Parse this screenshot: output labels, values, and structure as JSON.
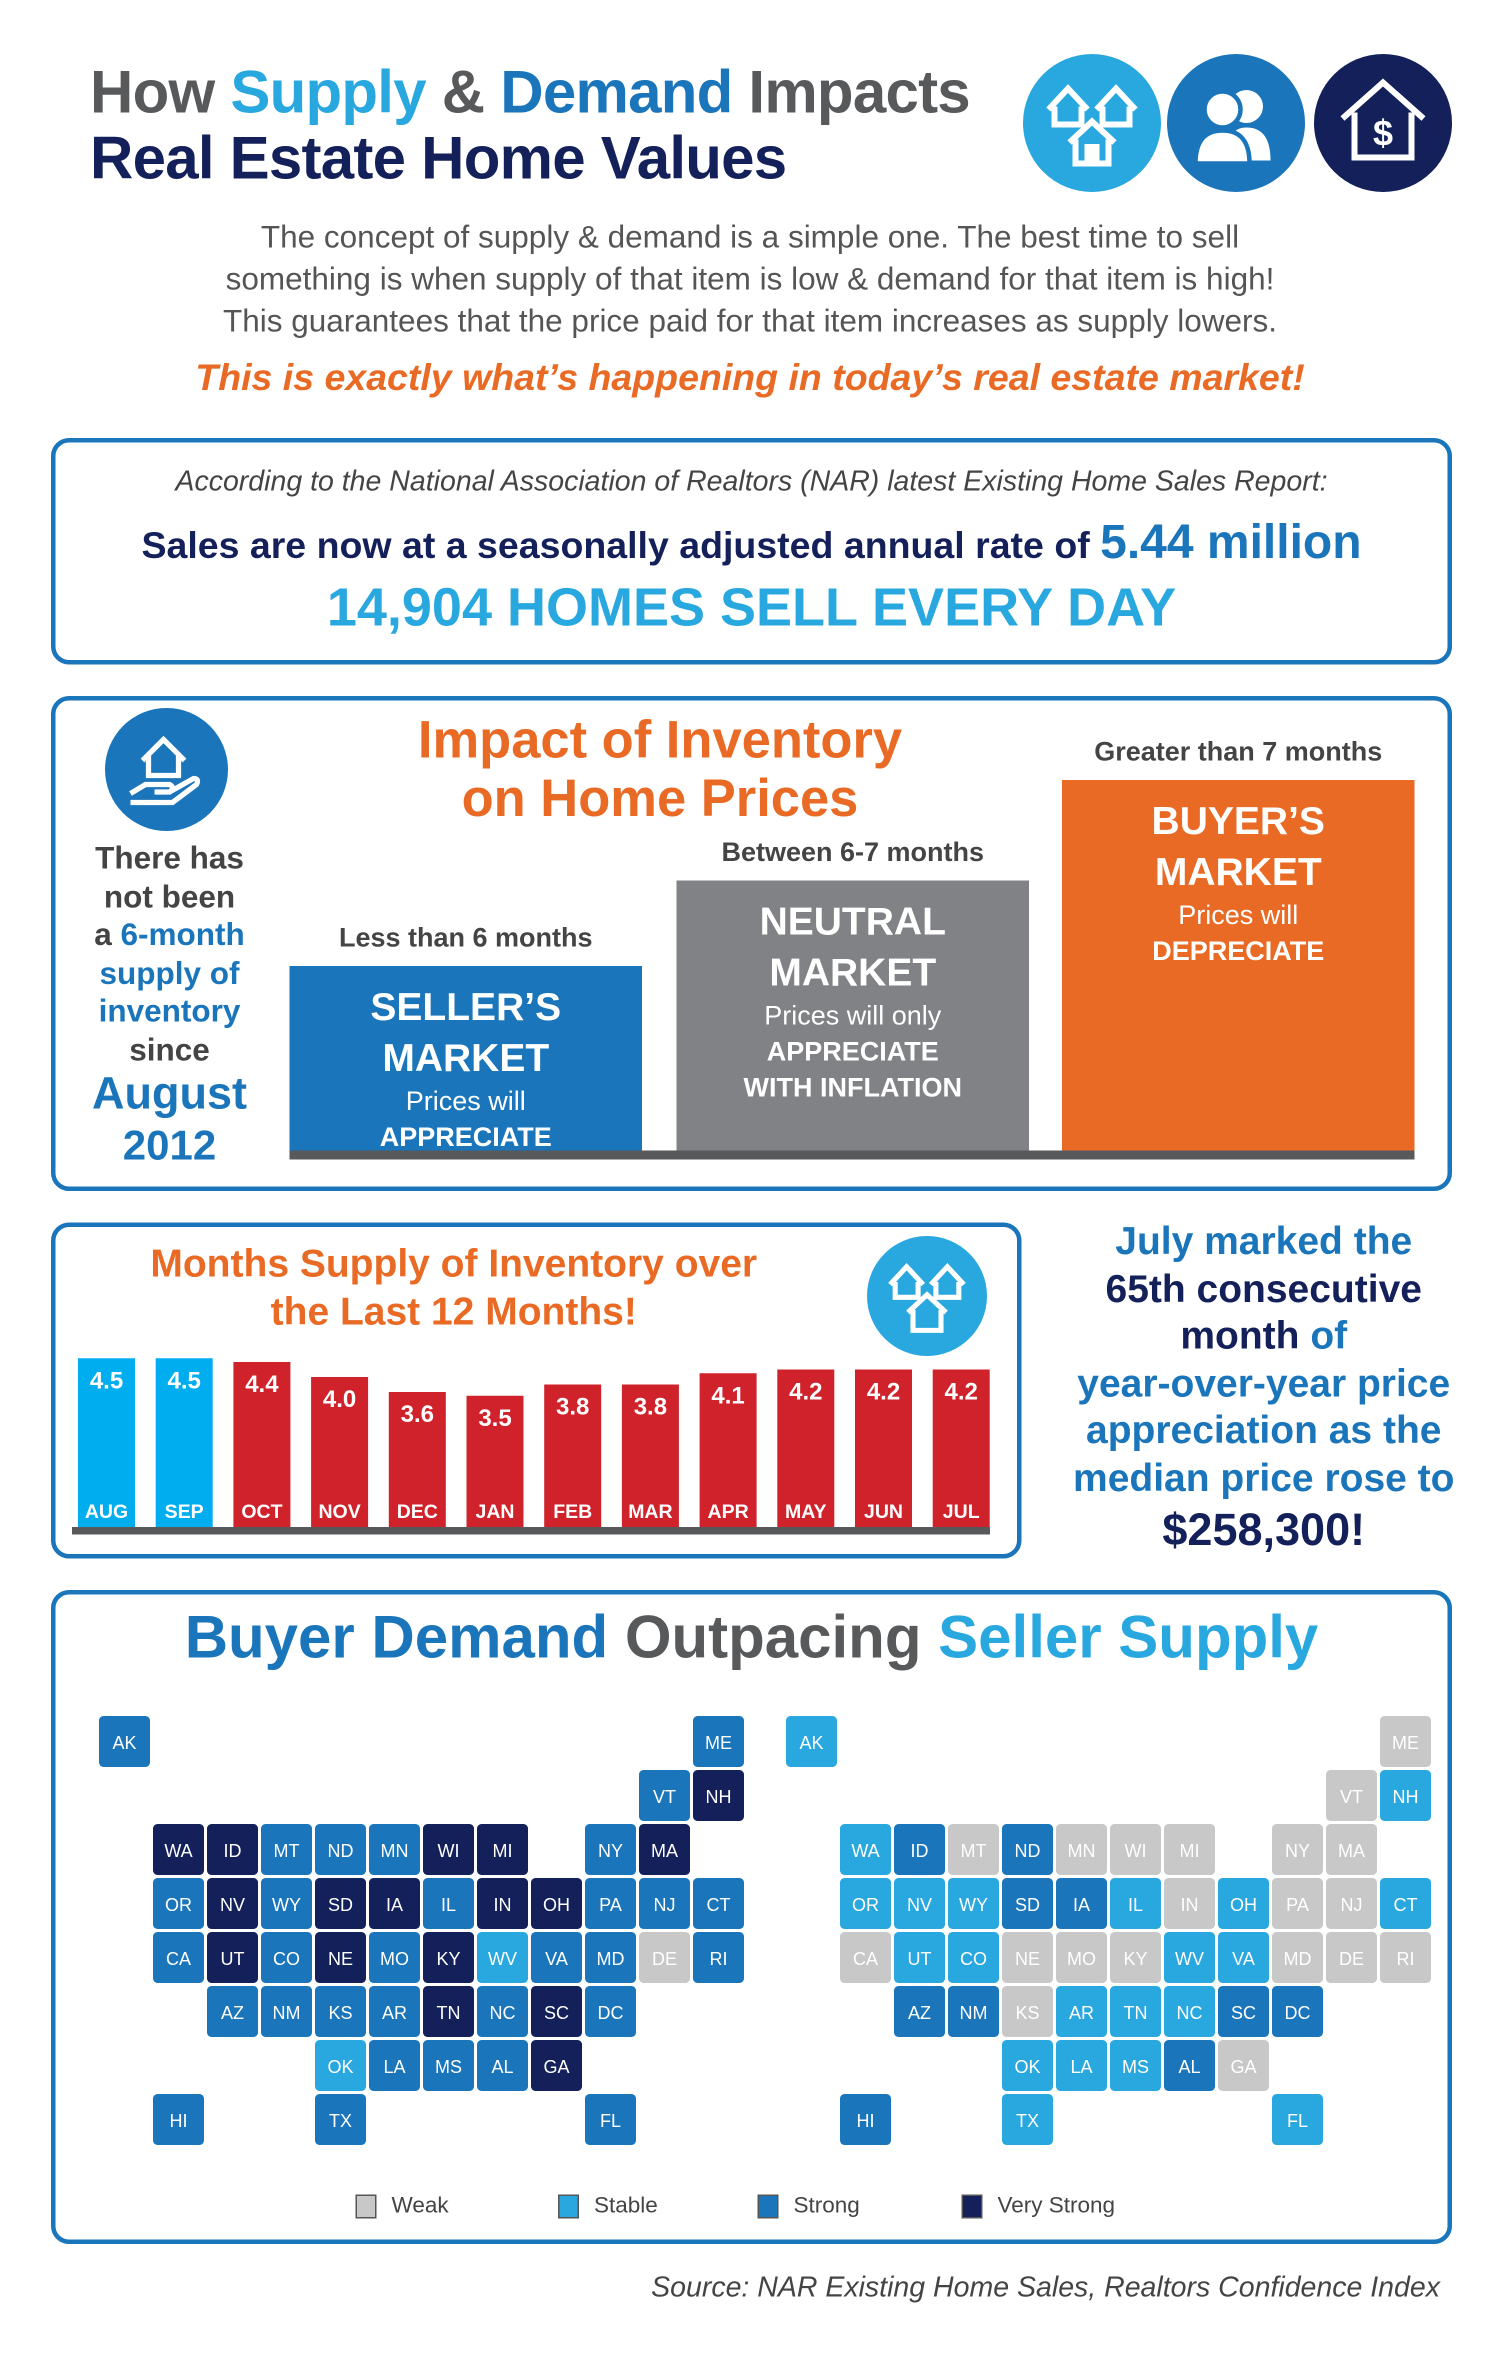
{
  "colors": {
    "light_blue": "#29a8e0",
    "mid_blue": "#1a75bb",
    "navy": "#13205a",
    "orange": "#e96a24",
    "gray": "#808285",
    "red": "#d0222a",
    "cyan": "#00aeef",
    "weak": "#c8c8c8"
  },
  "header": {
    "title_parts": [
      "How ",
      "Supply",
      " & ",
      "Demand",
      " Impacts"
    ],
    "title_line2": "Real Estate Home Values",
    "icons": [
      "houses-icon",
      "people-icon",
      "house-dollar-icon"
    ]
  },
  "intro": {
    "lines": [
      "The concept of supply & demand is a simple one. The best time to sell",
      "something is when supply of that item is low & demand for that item is high!",
      "This guarantees that the price paid for that item increases as supply lowers."
    ],
    "tagline": "This is exactly what’s happening in today’s real estate market!"
  },
  "sales_box": {
    "according": "According to the National Association of Realtors (NAR) latest Existing Home Sales Report:",
    "rate_text": "Sales are now at a seasonally adjusted annual rate of ",
    "rate_value": "5.44 million",
    "headline": "14,904 HOMES SELL EVERY DAY"
  },
  "impact": {
    "title_line1": "Impact of Inventory",
    "title_line2": "on Home Prices",
    "left_text": [
      "There has",
      "not been",
      "a ",
      "6-month",
      "supply of",
      "inventory",
      "since",
      "August",
      "2012"
    ],
    "markets": [
      {
        "range": "Less than 6 months",
        "title1": "SELLER’S",
        "title2": "MARKET",
        "line1": "Prices will",
        "line2": "APPRECIATE",
        "line3": ""
      },
      {
        "range": "Between 6-7 months",
        "title1": "NEUTRAL",
        "title2": "MARKET",
        "line1": "Prices will only",
        "line2": "APPRECIATE",
        "line3": "WITH INFLATION"
      },
      {
        "range": "Greater than 7 months",
        "title1": "BUYER’S",
        "title2": "MARKET",
        "line1": "Prices will",
        "line2": "DEPRECIATE",
        "line3": ""
      }
    ]
  },
  "chart_data": {
    "type": "bar",
    "title": "Months Supply of Inventory over the Last 12 Months!",
    "categories": [
      "AUG",
      "SEP",
      "OCT",
      "NOV",
      "DEC",
      "JAN",
      "FEB",
      "MAR",
      "APR",
      "MAY",
      "JUN",
      "JUL"
    ],
    "values": [
      4.5,
      4.5,
      4.4,
      4.0,
      3.6,
      3.5,
      3.8,
      3.8,
      4.1,
      4.2,
      4.2,
      4.2
    ],
    "bar_colors": [
      "#00aeef",
      "#00aeef",
      "#d0222a",
      "#d0222a",
      "#d0222a",
      "#d0222a",
      "#d0222a",
      "#d0222a",
      "#d0222a",
      "#d0222a",
      "#d0222a",
      "#d0222a"
    ],
    "data_labels": [
      "4.5",
      "4.5",
      "4.4",
      "4.0",
      "3.6",
      "3.5",
      "3.8",
      "3.8",
      "4.1",
      "4.2",
      "4.2",
      "4.2"
    ]
  },
  "chart_title": {
    "line1": "Months Supply of Inventory over",
    "line2": "the Last 12 Months!"
  },
  "side_stat": {
    "l1": "July marked the",
    "l2": "65th consecutive",
    "l3a": "month ",
    "l3b": "of",
    "l4": "year-over-year price",
    "l5": "appreciation as the",
    "l6": "median price rose to",
    "l7": "$258,300!"
  },
  "maps": {
    "title_parts": [
      "Buyer Demand",
      " Outpacing ",
      "Seller Supply"
    ],
    "legend": [
      {
        "label": "Weak",
        "color": "#c8c8c8"
      },
      {
        "label": "Stable",
        "color": "#29a8e0"
      },
      {
        "label": "Strong",
        "color": "#1a75bb"
      },
      {
        "label": "Very Strong",
        "color": "#13205a"
      }
    ],
    "states": [
      {
        "s": "AK",
        "d": "Strong",
        "p": "Stable"
      },
      {
        "s": "ME",
        "d": "Strong",
        "p": "Weak"
      },
      {
        "s": "VT",
        "d": "Strong",
        "p": "Weak"
      },
      {
        "s": "NH",
        "d": "Very Strong",
        "p": "Stable"
      },
      {
        "s": "WA",
        "d": "Very Strong",
        "p": "Stable"
      },
      {
        "s": "ID",
        "d": "Very Strong",
        "p": "Strong"
      },
      {
        "s": "MT",
        "d": "Strong",
        "p": "Weak"
      },
      {
        "s": "ND",
        "d": "Strong",
        "p": "Strong"
      },
      {
        "s": "MN",
        "d": "Strong",
        "p": "Weak"
      },
      {
        "s": "WI",
        "d": "Very Strong",
        "p": "Weak"
      },
      {
        "s": "MI",
        "d": "Very Strong",
        "p": "Weak"
      },
      {
        "s": "NY",
        "d": "Strong",
        "p": "Weak"
      },
      {
        "s": "MA",
        "d": "Very Strong",
        "p": "Weak"
      },
      {
        "s": "OR",
        "d": "Strong",
        "p": "Stable"
      },
      {
        "s": "NV",
        "d": "Very Strong",
        "p": "Stable"
      },
      {
        "s": "WY",
        "d": "Strong",
        "p": "Stable"
      },
      {
        "s": "SD",
        "d": "Very Strong",
        "p": "Strong"
      },
      {
        "s": "IA",
        "d": "Very Strong",
        "p": "Strong"
      },
      {
        "s": "IL",
        "d": "Strong",
        "p": "Stable"
      },
      {
        "s": "IN",
        "d": "Very Strong",
        "p": "Weak"
      },
      {
        "s": "OH",
        "d": "Very Strong",
        "p": "Stable"
      },
      {
        "s": "PA",
        "d": "Strong",
        "p": "Weak"
      },
      {
        "s": "NJ",
        "d": "Strong",
        "p": "Weak"
      },
      {
        "s": "CT",
        "d": "Strong",
        "p": "Stable"
      },
      {
        "s": "RI",
        "d": "Strong",
        "p": "Weak"
      },
      {
        "s": "CA",
        "d": "Strong",
        "p": "Weak"
      },
      {
        "s": "UT",
        "d": "Very Strong",
        "p": "Stable"
      },
      {
        "s": "CO",
        "d": "Strong",
        "p": "Stable"
      },
      {
        "s": "NE",
        "d": "Very Strong",
        "p": "Weak"
      },
      {
        "s": "MO",
        "d": "Strong",
        "p": "Weak"
      },
      {
        "s": "KY",
        "d": "Very Strong",
        "p": "Weak"
      },
      {
        "s": "WV",
        "d": "Stable",
        "p": "Stable"
      },
      {
        "s": "VA",
        "d": "Strong",
        "p": "Stable"
      },
      {
        "s": "MD",
        "d": "Strong",
        "p": "Weak"
      },
      {
        "s": "DE",
        "d": "Weak",
        "p": "Weak"
      },
      {
        "s": "AZ",
        "d": "Strong",
        "p": "Strong"
      },
      {
        "s": "NM",
        "d": "Strong",
        "p": "Strong"
      },
      {
        "s": "KS",
        "d": "Strong",
        "p": "Weak"
      },
      {
        "s": "AR",
        "d": "Strong",
        "p": "Stable"
      },
      {
        "s": "TN",
        "d": "Very Strong",
        "p": "Stable"
      },
      {
        "s": "NC",
        "d": "Strong",
        "p": "Stable"
      },
      {
        "s": "SC",
        "d": "Very Strong",
        "p": "Strong"
      },
      {
        "s": "DC",
        "d": "Strong",
        "p": "Strong"
      },
      {
        "s": "OK",
        "d": "Stable",
        "p": "Stable"
      },
      {
        "s": "LA",
        "d": "Strong",
        "p": "Stable"
      },
      {
        "s": "MS",
        "d": "Strong",
        "p": "Stable"
      },
      {
        "s": "AL",
        "d": "Strong",
        "p": "Strong"
      },
      {
        "s": "GA",
        "d": "Very Strong",
        "p": "Weak"
      },
      {
        "s": "HI",
        "d": "Strong",
        "p": "Strong"
      },
      {
        "s": "TX",
        "d": "Strong",
        "p": "Stable"
      },
      {
        "s": "FL",
        "d": "Strong",
        "p": "Stable"
      }
    ]
  },
  "source": "Source: NAR Existing Home Sales, Realtors Confidence Index"
}
